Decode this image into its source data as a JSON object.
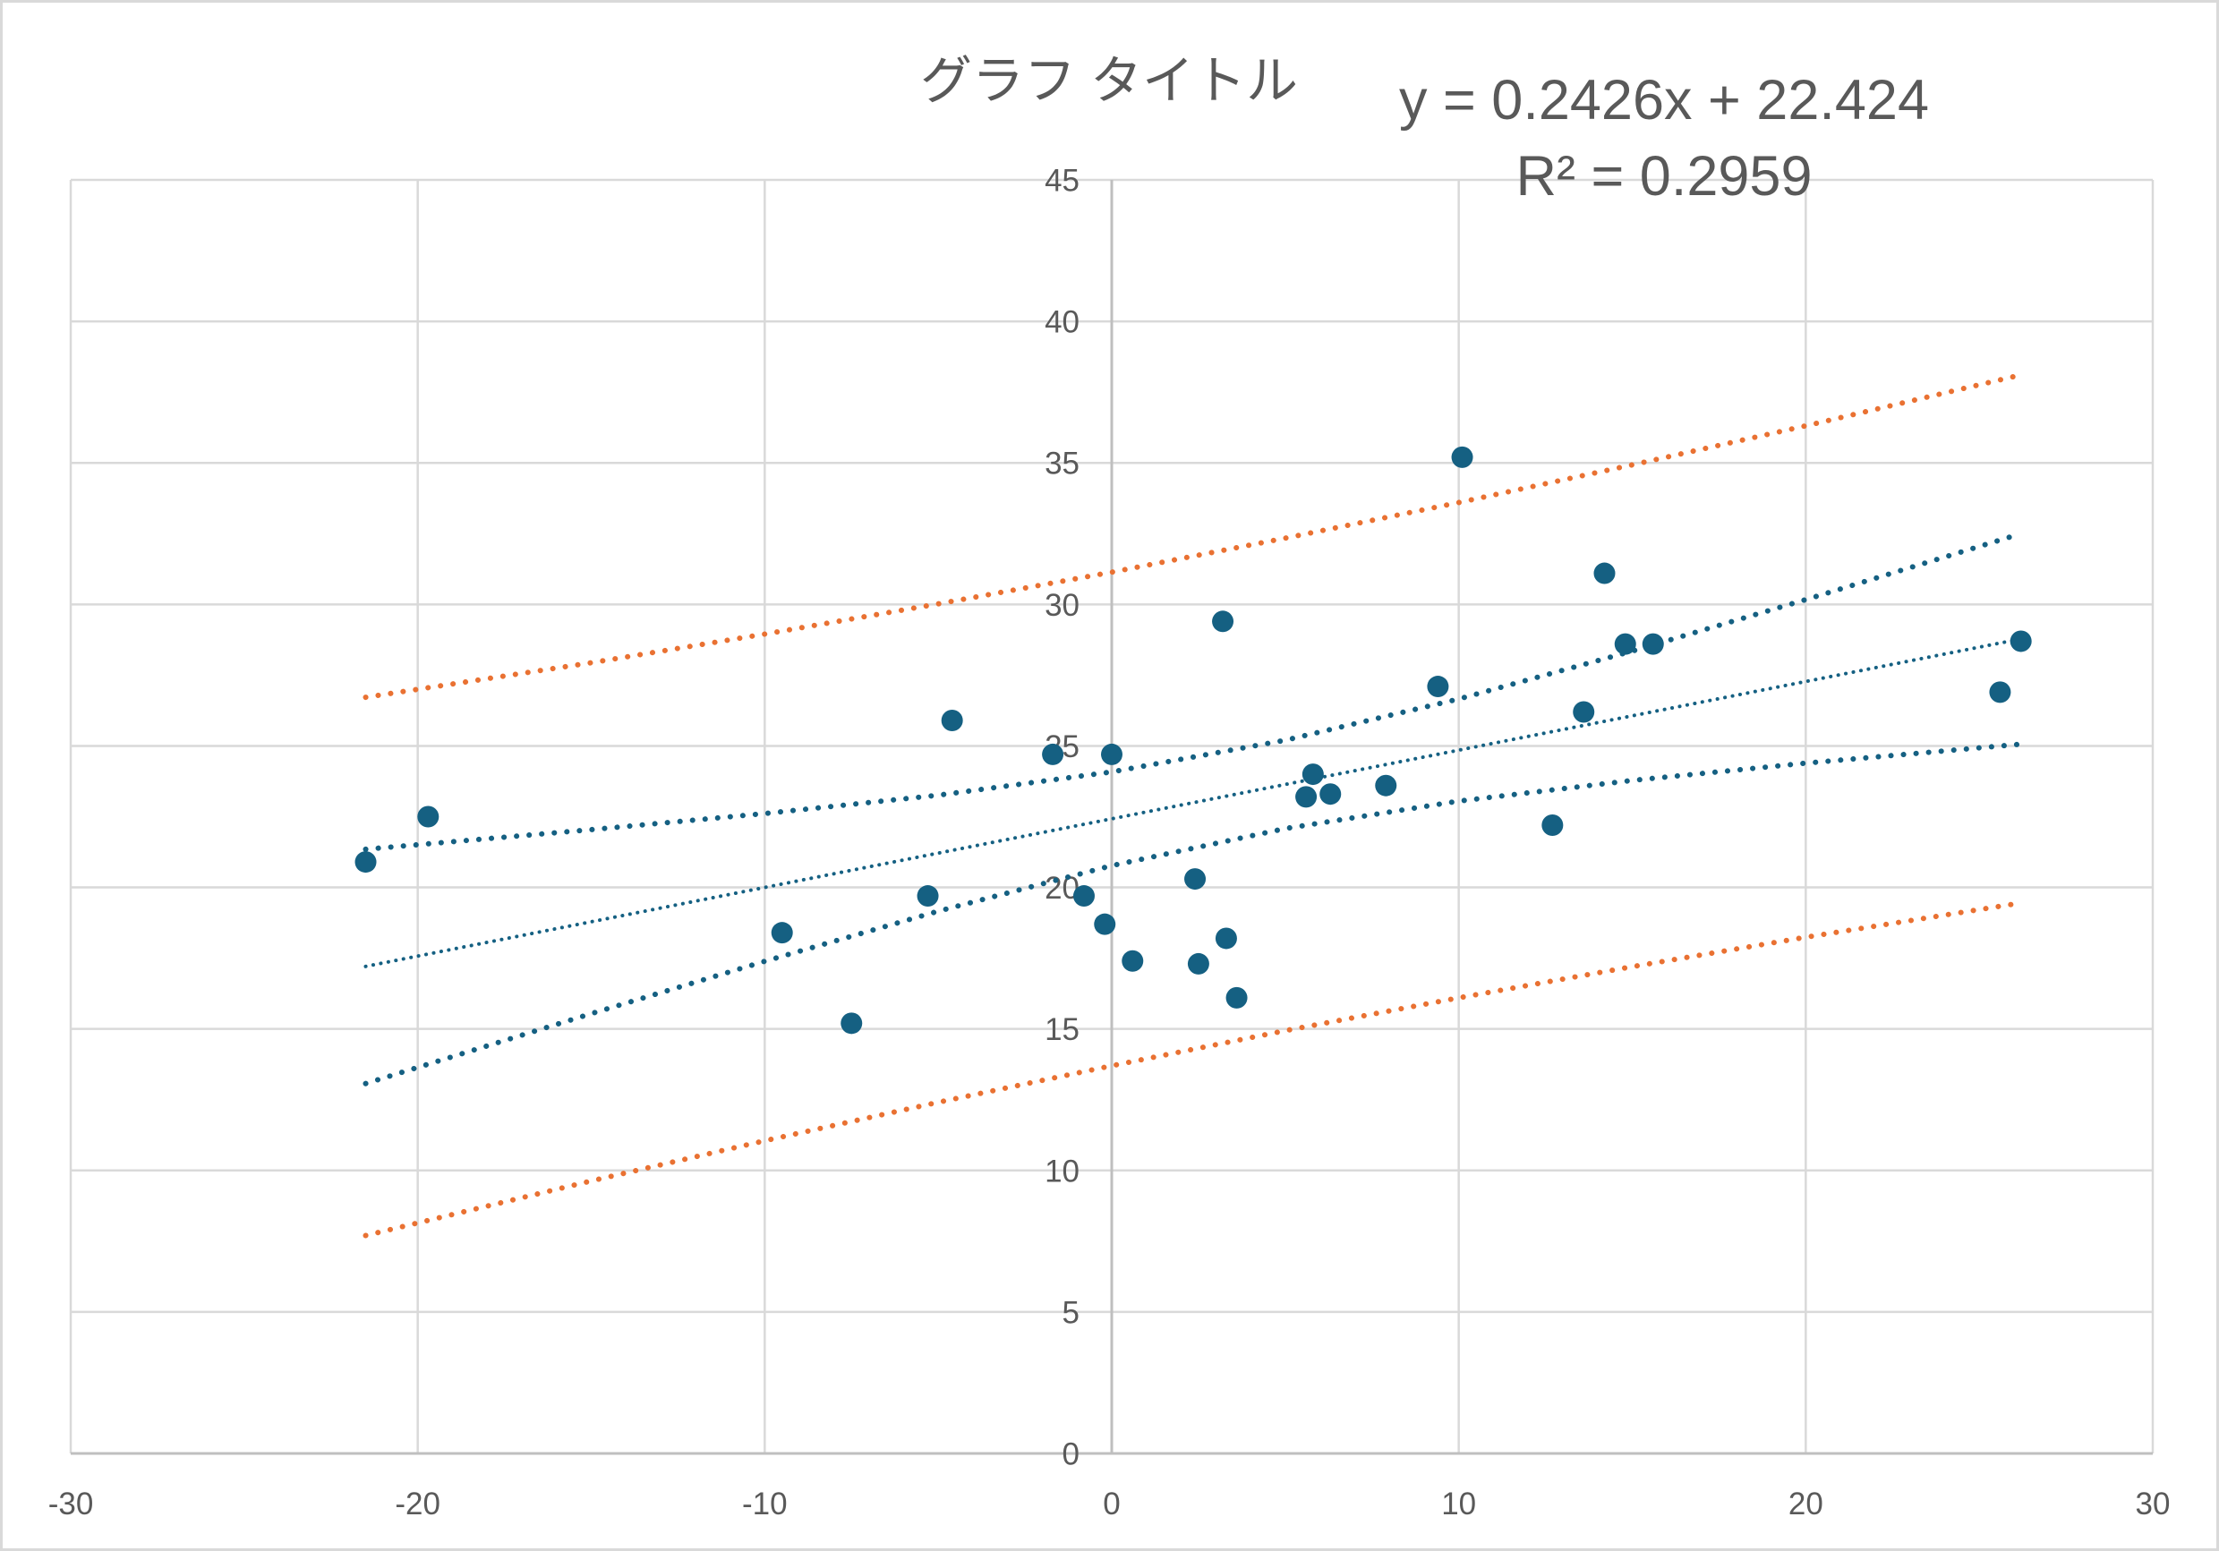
{
  "chart_data": {
    "type": "scatter",
    "title": "グラフ タイトル",
    "xlabel": "",
    "ylabel": "",
    "xlim": [
      -30,
      30
    ],
    "ylim": [
      0,
      45
    ],
    "x_ticks": [
      -30,
      -20,
      -10,
      0,
      10,
      20,
      30
    ],
    "x_tick_labels": [
      "-30",
      "-20",
      "-10",
      "0",
      "10",
      "20",
      "30"
    ],
    "y_ticks": [
      0,
      5,
      10,
      15,
      20,
      25,
      30,
      35,
      40,
      45
    ],
    "y_tick_labels": [
      "0",
      "5",
      "10",
      "15",
      "20",
      "25",
      "30",
      "35",
      "40",
      "45"
    ],
    "y_axis_crosses_at_x": 0,
    "grid": true,
    "legend": "none",
    "series": [
      {
        "mode": "markers",
        "marker": "circle",
        "color": "#156082",
        "x": [
          -21.5,
          -19.7,
          -9.5,
          -7.5,
          -5.3,
          -4.6,
          -1.7,
          -0.8,
          -0.2,
          0.0,
          0.6,
          2.4,
          2.5,
          3.2,
          3.3,
          3.6,
          5.6,
          5.8,
          6.3,
          7.9,
          9.4,
          10.1,
          12.7,
          13.6,
          14.2,
          14.8,
          15.6,
          25.6,
          26.2
        ],
        "y": [
          20.9,
          22.5,
          18.4,
          15.2,
          19.7,
          25.9,
          24.7,
          19.7,
          18.7,
          24.7,
          17.4,
          20.3,
          17.3,
          29.4,
          18.2,
          16.1,
          23.2,
          24.0,
          23.3,
          23.6,
          27.1,
          35.2,
          22.2,
          26.2,
          31.1,
          28.6,
          28.6,
          26.9,
          28.7
        ]
      },
      {
        "mode": "lines",
        "dash": "dot",
        "color": "#E97132",
        "x": [
          -21.5,
          -15,
          -10,
          -5,
          0,
          5,
          10,
          15,
          20,
          26.2
        ],
        "y": [
          26.72,
          27.94,
          28.95,
          30.02,
          31.14,
          32.34,
          33.6,
          34.93,
          36.31,
          38.11
        ]
      },
      {
        "mode": "lines",
        "dash": "dot",
        "color": "#156082",
        "x": [
          -21.5,
          -15,
          -10,
          -5,
          0,
          5,
          10,
          15,
          20,
          26.2
        ],
        "y": [
          21.35,
          22.04,
          22.61,
          23.26,
          24.08,
          25.2,
          26.66,
          28.35,
          30.17,
          32.5
        ]
      },
      {
        "mode": "lines",
        "dash": "dot",
        "color": "#156082",
        "x": [
          -21.5,
          -15,
          -10,
          -5,
          0,
          5,
          10,
          15,
          20,
          26.2
        ],
        "y": [
          13.07,
          15.54,
          17.39,
          19.16,
          20.77,
          22.08,
          23.05,
          23.78,
          24.39,
          25.06
        ]
      },
      {
        "mode": "lines",
        "dash": "dot",
        "color": "#E97132",
        "x": [
          -21.5,
          -15,
          -10,
          -5,
          0,
          5,
          10,
          15,
          20,
          26.2
        ],
        "y": [
          7.7,
          9.63,
          11.05,
          12.41,
          13.7,
          14.94,
          16.1,
          17.2,
          18.24,
          19.45
        ]
      }
    ],
    "trendline": {
      "type": "linear",
      "dash": "dot",
      "color": "#156082",
      "x": [
        -21.5,
        26.2
      ],
      "y": [
        17.21,
        28.78
      ],
      "equation": "y = 0.2426x + 22.424",
      "r_squared": "R² = 0.2959"
    }
  },
  "colors": {
    "text": "#595959",
    "grid": "#D9D9D9",
    "axis": "#BFBFBF",
    "border": "#D9D9D9",
    "background": "#FFFFFF"
  }
}
